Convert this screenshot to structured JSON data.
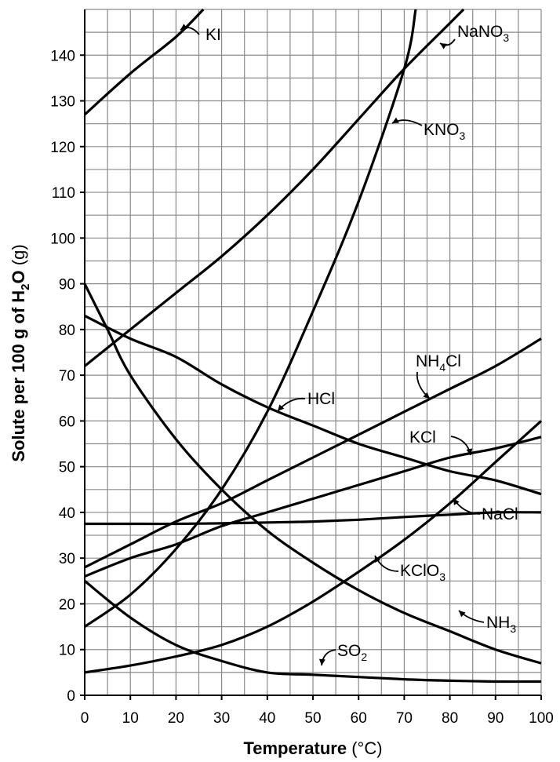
{
  "chart_data": {
    "type": "line",
    "title": "",
    "xlabel": {
      "main": "Temperature",
      "unit": " (°C)"
    },
    "ylabel": {
      "pre": "Solute per 100 g of H",
      "sub": "2",
      "post": "O",
      "unit": " (g)"
    },
    "xlim": [
      0,
      100
    ],
    "ylim": [
      0,
      150
    ],
    "x_ticks": [
      0,
      10,
      20,
      30,
      40,
      50,
      60,
      70,
      80,
      90,
      100
    ],
    "y_ticks": [
      0,
      10,
      20,
      30,
      40,
      50,
      60,
      70,
      80,
      90,
      100,
      110,
      120,
      130,
      140
    ],
    "grid": true,
    "series": [
      {
        "name": "KI",
        "x": [
          0,
          10,
          20,
          26
        ],
        "y": [
          127,
          136,
          144,
          150
        ]
      },
      {
        "name": "NaNO3",
        "x": [
          0,
          10,
          20,
          30,
          40,
          50,
          60,
          70,
          80,
          83
        ],
        "y": [
          72,
          80,
          88,
          96,
          105,
          115,
          126,
          137,
          147,
          150
        ]
      },
      {
        "name": "KNO3",
        "x": [
          0,
          10,
          20,
          30,
          40,
          50,
          60,
          70,
          72.5
        ],
        "y": [
          15,
          22,
          32,
          45,
          62,
          84,
          108,
          137,
          150
        ]
      },
      {
        "name": "NH4Cl",
        "x": [
          0,
          10,
          20,
          30,
          40,
          50,
          60,
          70,
          80,
          90,
          100
        ],
        "y": [
          28,
          33,
          38,
          42,
          47,
          52,
          57,
          62,
          67,
          72,
          78
        ]
      },
      {
        "name": "HCl",
        "x": [
          0,
          10,
          20,
          30,
          40,
          50,
          60,
          70,
          80,
          90,
          100
        ],
        "y": [
          83,
          78,
          74,
          68,
          63,
          59,
          55,
          52,
          49,
          47,
          44
        ]
      },
      {
        "name": "KCl",
        "x": [
          0,
          10,
          20,
          30,
          40,
          50,
          60,
          70,
          80,
          90,
          100
        ],
        "y": [
          26,
          30,
          33,
          37,
          40,
          43,
          46,
          49,
          52,
          54,
          56.5
        ]
      },
      {
        "name": "NaCl",
        "x": [
          0,
          10,
          20,
          30,
          40,
          50,
          60,
          70,
          80,
          90,
          100
        ],
        "y": [
          37.5,
          37.5,
          37.5,
          37.6,
          37.8,
          38,
          38.4,
          39,
          39.5,
          40,
          40
        ]
      },
      {
        "name": "KClO3",
        "x": [
          0,
          10,
          20,
          30,
          40,
          50,
          60,
          70,
          80,
          90,
          100
        ],
        "y": [
          5,
          6.5,
          8.5,
          11,
          15,
          20.5,
          27,
          34,
          42,
          51,
          60
        ]
      },
      {
        "name": "NH3",
        "x": [
          0,
          5,
          10,
          20,
          30,
          40,
          50,
          60,
          70,
          80,
          90,
          100
        ],
        "y": [
          90,
          80,
          70,
          56,
          45,
          36,
          29,
          23,
          18,
          14,
          10,
          7
        ]
      },
      {
        "name": "SO2",
        "x": [
          0,
          10,
          20,
          30,
          40,
          50,
          60,
          70,
          80,
          90,
          100
        ],
        "y": [
          25,
          17,
          11,
          7.5,
          5,
          4.5,
          4,
          3.5,
          3.2,
          3,
          3
        ]
      }
    ],
    "annotations": [
      {
        "series": "KI",
        "main": "KI",
        "sub": "",
        "post": ""
      },
      {
        "series": "NaNO3",
        "main": "NaNO",
        "sub": "3",
        "post": ""
      },
      {
        "series": "KNO3",
        "main": "KNO",
        "sub": "3",
        "post": ""
      },
      {
        "series": "NH4Cl",
        "main": "NH",
        "sub": "4",
        "post": "Cl"
      },
      {
        "series": "HCl",
        "main": "HCl",
        "sub": "",
        "post": ""
      },
      {
        "series": "KCl",
        "main": "KCl",
        "sub": "",
        "post": ""
      },
      {
        "series": "NaCl",
        "main": "NaCl",
        "sub": "",
        "post": ""
      },
      {
        "series": "KClO3",
        "main": "KClO",
        "sub": "3",
        "post": ""
      },
      {
        "series": "NH3",
        "main": "NH",
        "sub": "3",
        "post": ""
      },
      {
        "series": "SO2",
        "main": "SO",
        "sub": "2",
        "post": ""
      }
    ],
    "colors": {
      "line": "#000000",
      "grid": "#8a8a8a"
    }
  }
}
